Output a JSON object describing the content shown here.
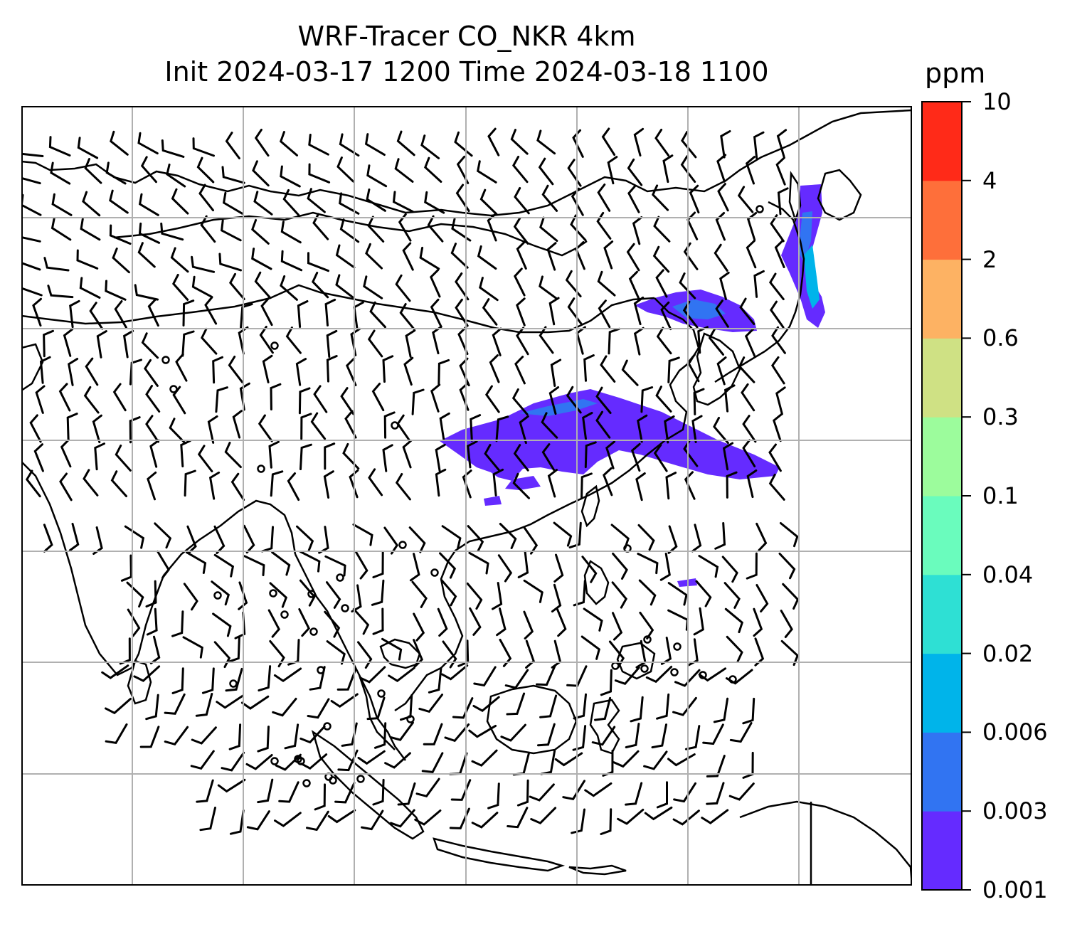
{
  "title": {
    "line1": "WRF-Tracer CO_NKR 4km",
    "line2": "Init 2024-03-17 1200 Time 2024-03-18 1100"
  },
  "colorbar": {
    "unit": "ppm",
    "levels": [
      "0.001",
      "0.003",
      "0.006",
      "0.02",
      "0.04",
      "0.1",
      "0.3",
      "0.6",
      "2",
      "4",
      "10"
    ],
    "colors": [
      "#652bff",
      "#3174f2",
      "#00b4ea",
      "#2ee0d4",
      "#6afcbd",
      "#9cfc9c",
      "#cfe184",
      "#fdb263",
      "#fe6f3a",
      "#ff2a18"
    ]
  },
  "map": {
    "gridline_color": "#b0b0b0",
    "coastline_color": "#000000",
    "plume_colors": [
      "#652bff",
      "#3174f2",
      "#00b4ea",
      "#2ee0d4"
    ]
  }
}
